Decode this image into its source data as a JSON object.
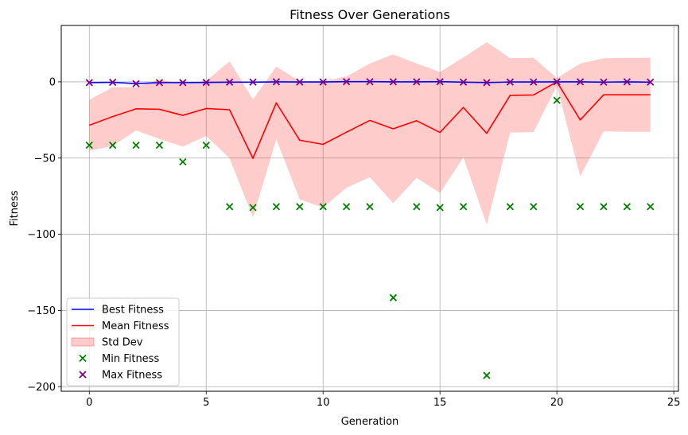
{
  "chart_data": {
    "type": "line",
    "title": "Fitness Over Generations",
    "xlabel": "Generation",
    "ylabel": "Fitness",
    "xlim": [
      -1.2,
      25.2
    ],
    "ylim": [
      -203,
      37
    ],
    "xticks": [
      0,
      5,
      10,
      15,
      20,
      25
    ],
    "yticks": [
      -200,
      -150,
      -100,
      -50,
      0
    ],
    "ytick_labels": [
      "−200",
      "−150",
      "−100",
      "−50",
      "0"
    ],
    "grid": true,
    "legend_position": "lower-left",
    "x": [
      0,
      1,
      2,
      3,
      4,
      5,
      6,
      7,
      8,
      9,
      10,
      11,
      12,
      13,
      14,
      15,
      16,
      17,
      18,
      19,
      20,
      21,
      22,
      23,
      24
    ],
    "series": [
      {
        "name": "Best Fitness",
        "kind": "line",
        "color": "#0000ff",
        "values": [
          -0.5,
          -0.3,
          -1.2,
          -0.5,
          -0.5,
          -0.4,
          -0.2,
          -0.2,
          0,
          -0.1,
          -0.1,
          0.1,
          0.1,
          0,
          0,
          0.1,
          -0.2,
          -0.5,
          -0.1,
          -0.1,
          0,
          0,
          -0.2,
          0,
          -0.2
        ]
      },
      {
        "name": "Mean Fitness",
        "kind": "line",
        "color": "#ff0000",
        "values": [
          -28.5,
          -22.8,
          -17.7,
          -18,
          -22,
          -17.5,
          -18.3,
          -50.2,
          -13.8,
          -38.3,
          -41,
          -33,
          -25.3,
          -30.8,
          -25.5,
          -33.2,
          -16.8,
          -33.8,
          -8.9,
          -8.6,
          0,
          -25,
          -8.5,
          -8.5,
          -8.5
        ]
      },
      {
        "name": "Std Dev",
        "kind": "band",
        "color": "#ff0000",
        "opacity": 0.2,
        "upper": [
          -11.8,
          -3.5,
          -3.5,
          1.5,
          -1.5,
          0.5,
          13.5,
          -11.5,
          10,
          0.5,
          0.5,
          3.5,
          12,
          18,
          12,
          6.5,
          16,
          26,
          15.5,
          15.8,
          2.5,
          12,
          15.5,
          15.8,
          15.8
        ],
        "lower": [
          -45.2,
          -42.1,
          -31.9,
          -37.5,
          -42.5,
          -35.5,
          -50.1,
          -88.9,
          -37.6,
          -77.1,
          -82.5,
          -69.5,
          -62.6,
          -79.6,
          -63,
          -72.9,
          -49.6,
          -93.6,
          -33.3,
          -33,
          -2.5,
          -62,
          -32.5,
          -32.8,
          -32.8
        ]
      },
      {
        "name": "Min Fitness",
        "kind": "scatter",
        "marker": "x",
        "color": "#008000",
        "values": [
          -41.6,
          -41.6,
          -41.6,
          -41.6,
          -52.5,
          -41.6,
          -81.9,
          -82.5,
          -81.9,
          -81.9,
          -81.9,
          -81.9,
          -81.9,
          -141.6,
          -81.9,
          -82.5,
          -81.9,
          -192.6,
          -81.9,
          -81.9,
          -12.1,
          -81.9,
          -81.9,
          -81.9,
          -81.9
        ]
      },
      {
        "name": "Max Fitness",
        "kind": "scatter",
        "marker": "x",
        "color": "#800080",
        "values": [
          -0.5,
          -0.3,
          -1.2,
          -0.5,
          -0.5,
          -0.4,
          -0.2,
          -0.2,
          0,
          -0.1,
          -0.1,
          0.1,
          0.1,
          0,
          0,
          0.1,
          -0.2,
          -0.5,
          -0.1,
          -0.1,
          0,
          0,
          -0.2,
          0,
          -0.2
        ]
      }
    ]
  }
}
